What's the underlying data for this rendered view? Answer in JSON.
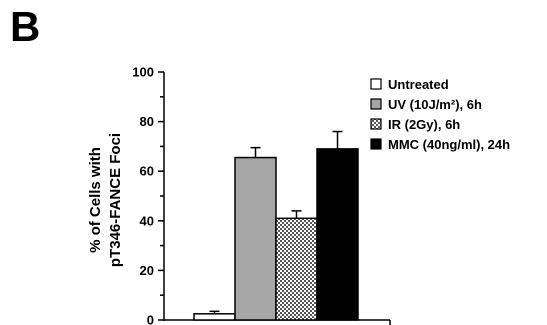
{
  "panel_label": "B",
  "chart_data": {
    "type": "bar",
    "title": "",
    "xlabel": "",
    "ylabel_line1": "% of Cells with",
    "ylabel_line2": "pT346-FANCE Foci",
    "ylim": [
      0,
      100
    ],
    "yticks": [
      "0",
      "20",
      "40",
      "60",
      "80",
      "100"
    ],
    "grid": false,
    "legend_position": "top-right",
    "series": [
      {
        "name": "Untreated",
        "value": 2.5,
        "error": 1.0,
        "fill": "white",
        "color": "#ffffff"
      },
      {
        "name": "UV (10J/m²), 6h",
        "value": 65.5,
        "error": 4.0,
        "fill": "solid",
        "color": "#a6a6a6"
      },
      {
        "name": "IR (2Gy), 6h",
        "value": 41,
        "error": 3.0,
        "fill": "checker",
        "color": "#bdbdbd"
      },
      {
        "name": "MMC (40ng/ml), 24h",
        "value": 69,
        "error": 7.0,
        "fill": "solid",
        "color": "#000000"
      }
    ]
  }
}
